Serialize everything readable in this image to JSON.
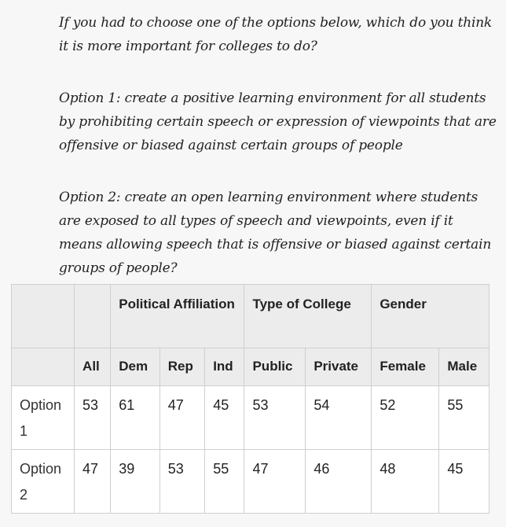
{
  "prompt": {
    "question": "If you had to choose one of the options below, which do you think it is more important for colleges to do?",
    "option1": "Option 1: create a positive learning environment for all students by prohibiting certain speech or expression of viewpoints that are offensive or biased against certain groups of people",
    "option2": "Option 2: create an open learning environment where students are exposed to all types of speech and viewpoints, even if it means allowing speech that is offensive or biased against certain groups of people?"
  },
  "table": {
    "group_headers": {
      "political": "Political Affiliation",
      "college": "Type of College",
      "gender": "Gender"
    },
    "columns": [
      "All",
      "Dem",
      "Rep",
      "Ind",
      "Public",
      "Private",
      "Female",
      "Male"
    ],
    "rows": [
      {
        "label": "Option 1",
        "values": [
          "53",
          "61",
          "47",
          "45",
          "53",
          "54",
          "52",
          "55"
        ]
      },
      {
        "label": "Option 2",
        "values": [
          "47",
          "39",
          "53",
          "55",
          "47",
          "46",
          "48",
          "45"
        ]
      }
    ]
  }
}
